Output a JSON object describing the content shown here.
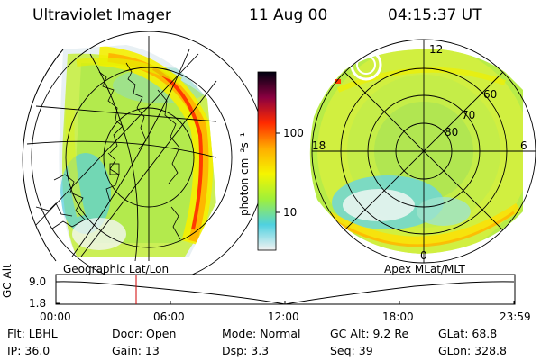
{
  "header": {
    "instrument": "Ultraviolet Imager",
    "date": "11 Aug 00",
    "time": "04:15:37 UT"
  },
  "colorbar": {
    "unit_label": "photon cm⁻²s⁻¹",
    "ticks": [
      "100",
      "10"
    ],
    "scale": "log",
    "colors": [
      "#f2f2f2",
      "#4fd1e0",
      "#9ff03a",
      "#f5f500",
      "#ffad00",
      "#ff2a00",
      "#8a0040",
      "#000010"
    ]
  },
  "left_panel": {
    "caption": "Geographic Lat/Lon"
  },
  "right_panel": {
    "caption": "Apex MLat/MLT",
    "mlt_labels": [
      "12",
      "18",
      "6",
      "0"
    ],
    "mlat_labels": [
      "60",
      "70",
      "80"
    ]
  },
  "timeline": {
    "axis_label": "GC Alt",
    "y_ticks": [
      "9.0",
      "1.8"
    ],
    "x_ticks": [
      "00:00",
      "06:00",
      "12:00",
      "18:00",
      "23:59"
    ],
    "marker_color": "#d00000"
  },
  "footer": {
    "row1": [
      {
        "name": "filter",
        "text": "Flt: LBHL"
      },
      {
        "name": "door",
        "text": "Door: Open"
      },
      {
        "name": "mode",
        "text": "Mode: Normal"
      },
      {
        "name": "gc-alt",
        "text": "GC Alt: 9.2 Re"
      },
      {
        "name": "glat",
        "text": "GLat:  68.8"
      }
    ],
    "row2": [
      {
        "name": "ip",
        "text": "IP: 36.0"
      },
      {
        "name": "gain",
        "text": "Gain: 13"
      },
      {
        "name": "dsp",
        "text": "Dsp:     3.3"
      },
      {
        "name": "seq",
        "text": "Seq: 39"
      },
      {
        "name": "glon",
        "text": "GLon: 328.8"
      }
    ]
  }
}
